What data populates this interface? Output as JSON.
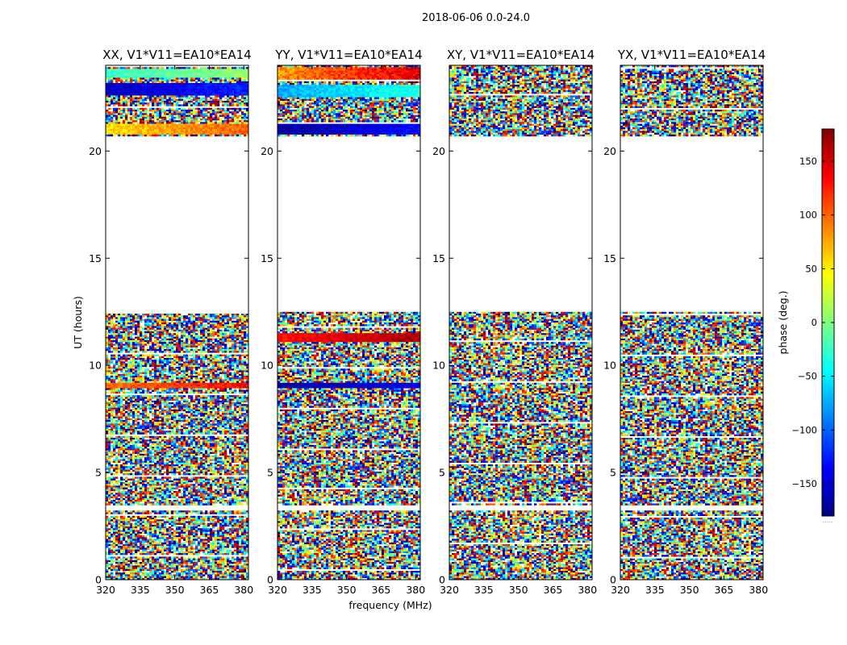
{
  "suptitle": "2018-06-06 0.0-24.0",
  "colors": {
    "background": "#ffffff",
    "axes": "#000000",
    "colormap": [
      "#00007f",
      "#0000ff",
      "#007fff",
      "#00ffff",
      "#7fff7f",
      "#ffff00",
      "#ff7f00",
      "#ff0000",
      "#7f0000"
    ]
  },
  "chart_data": {
    "type": "heatmap",
    "xlabel": "frequency (MHz)",
    "ylabel": "UT (hours)",
    "xlim": [
      320,
      382
    ],
    "ylim": [
      0,
      24
    ],
    "xticks": [
      320,
      335,
      350,
      365,
      380
    ],
    "yticks": [
      0,
      5,
      10,
      15,
      20
    ],
    "colorbar": {
      "label": "phase (deg.)",
      "range": [
        -180,
        180
      ],
      "ticks": [
        150,
        100,
        50,
        0,
        -50,
        -100,
        -150
      ],
      "tick_labels": [
        "150",
        "100",
        "50",
        "0",
        "−50",
        "−100",
        "−150"
      ],
      "footer": "....."
    },
    "data_intervals_ut": [
      [
        0,
        3.2
      ],
      [
        3.5,
        12.5
      ],
      [
        20.7,
        24
      ]
    ],
    "panels": [
      {
        "title": "XX, V1*V11=EA10*EA14",
        "coherent_bands": [
          {
            "ut": [
              23.4,
              23.85
            ],
            "phase_min": -40,
            "phase_max": 20
          },
          {
            "ut": [
              20.8,
              21.3
            ],
            "phase_min": 40,
            "phase_max": 120
          },
          {
            "ut": [
              22.6,
              23.2
            ],
            "phase_min": -170,
            "phase_max": -110
          },
          {
            "ut": [
              8.9,
              9.2
            ],
            "phase_min": 80,
            "phase_max": 150
          }
        ]
      },
      {
        "title": "YY, V1*V11=EA10*EA14",
        "coherent_bands": [
          {
            "ut": [
              23.3,
              23.9
            ],
            "phase_min": 60,
            "phase_max": 170
          },
          {
            "ut": [
              22.5,
              23.1
            ],
            "phase_min": -90,
            "phase_max": -20
          },
          {
            "ut": [
              20.8,
              21.3
            ],
            "phase_min": -180,
            "phase_max": -120
          },
          {
            "ut": [
              11.1,
              11.5
            ],
            "phase_min": 120,
            "phase_max": 175
          },
          {
            "ut": [
              8.9,
              9.2
            ],
            "phase_min": -175,
            "phase_max": -130
          }
        ]
      },
      {
        "title": "XY, V1*V11=EA10*EA14",
        "coherent_bands": []
      },
      {
        "title": "YX, V1*V11=EA10*EA14",
        "coherent_bands": []
      }
    ]
  }
}
